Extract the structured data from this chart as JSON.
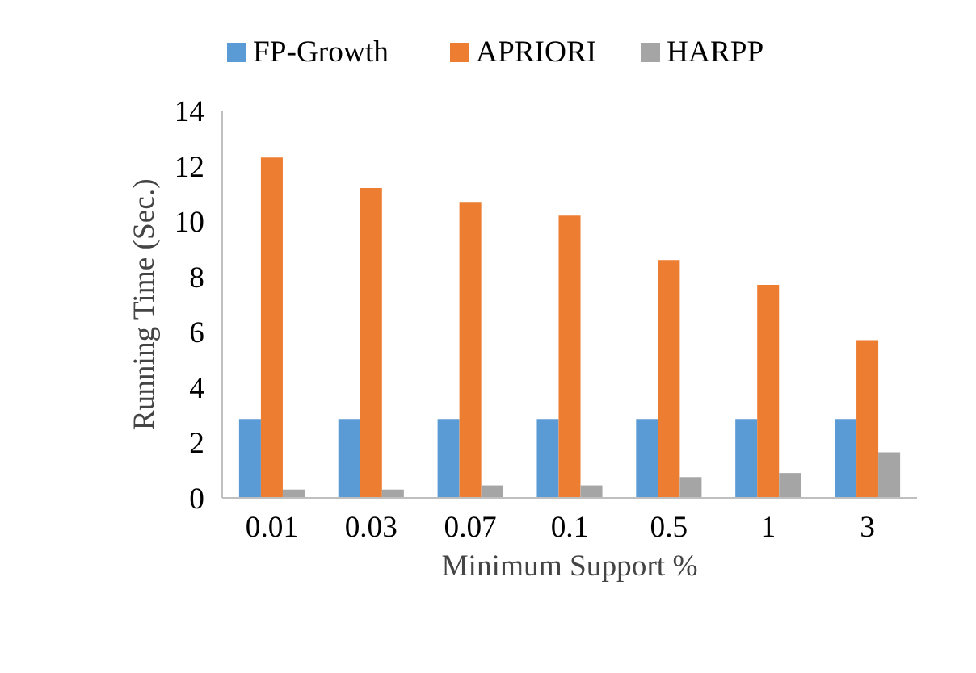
{
  "chart_data": {
    "type": "bar",
    "xlabel": "Minimum Support %",
    "ylabel": "Running Time (Sec.)",
    "categories": [
      "0.01",
      "0.03",
      "0.07",
      "0.1",
      "0.5",
      "1",
      "3"
    ],
    "series": [
      {
        "name": "FP-Growth",
        "color": "#5b9bd5",
        "values": [
          2.85,
          2.85,
          2.85,
          2.85,
          2.85,
          2.85,
          2.85
        ]
      },
      {
        "name": "APRIORI",
        "color": "#ed7d31",
        "values": [
          12.3,
          11.2,
          10.7,
          10.2,
          8.6,
          7.7,
          5.7
        ]
      },
      {
        "name": "HARPP",
        "color": "#a5a5a5",
        "values": [
          0.3,
          0.3,
          0.45,
          0.45,
          0.75,
          0.9,
          1.65
        ]
      }
    ],
    "ylim": [
      0,
      14
    ],
    "yticks": [
      0,
      2,
      4,
      6,
      8,
      10,
      12,
      14
    ],
    "grid": false,
    "legend": "top"
  }
}
